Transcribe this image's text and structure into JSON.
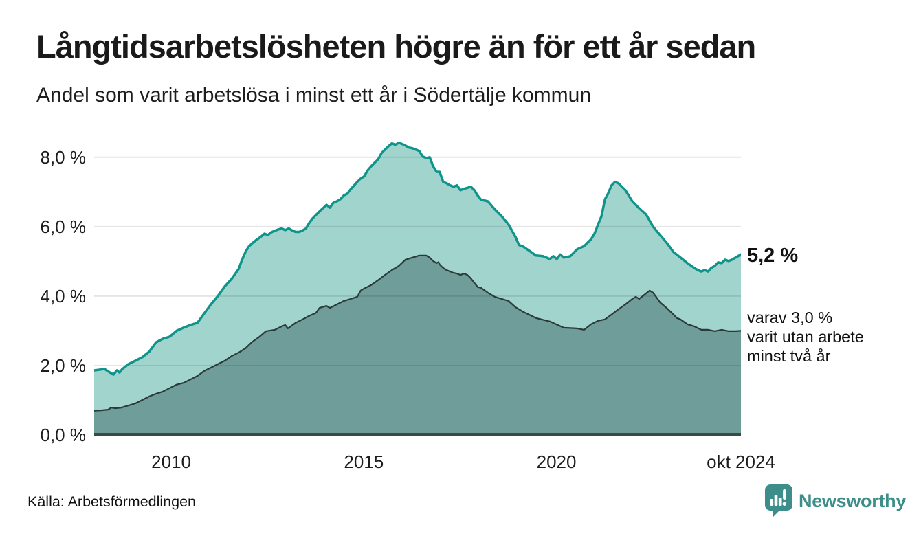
{
  "header": {
    "title": "Långtidsarbetslösheten högre än för ett år sedan",
    "subtitle": "Andel som varit arbetslösa i minst ett år i Södertälje kommun"
  },
  "annotations": {
    "latest_one_year_label": "5,2 %",
    "note_lines": [
      "varav 3,0 %",
      "varit utan arbete",
      "minst två år"
    ]
  },
  "footer": {
    "source": "Källa: Arbetsförmedlingen",
    "brand": "Newsworthy"
  },
  "colors": {
    "accent_teal": "#0f948b",
    "fill_one_year": "#a2d4ce",
    "fill_two_years": "#6f9d99",
    "line_two_years": "#2b3a38",
    "baseline": "#3c4a47",
    "gridline": "rgba(0,0,0,0.10)",
    "brand_teal": "#3d8e8a",
    "text": "#1a1a1a"
  },
  "chart_data": {
    "type": "area",
    "title": "Långtidsarbetslösheten högre än för ett år sedan",
    "subtitle": "Andel som varit arbetslösa i minst ett år i Södertälje kommun",
    "xlabel": "",
    "ylabel": "",
    "unit": "%",
    "grid": true,
    "x_domain": [
      2008.0,
      2024.79
    ],
    "ylim": [
      0,
      8.67
    ],
    "y_ticks": [
      {
        "value": 8,
        "label": "8,0 %"
      },
      {
        "value": 6,
        "label": "6,0 %"
      },
      {
        "value": 4,
        "label": "4,0 %"
      },
      {
        "value": 2,
        "label": "2,0 %"
      },
      {
        "value": 0,
        "label": "0,0 %"
      }
    ],
    "x_ticks": [
      {
        "year": 2010,
        "label": "2010"
      },
      {
        "year": 2015,
        "label": "2015"
      },
      {
        "year": 2020,
        "label": "2020"
      },
      {
        "year": 2024.79,
        "label": "okt 2024"
      }
    ],
    "series": [
      {
        "name": "Andel arbetslösa minst ett år",
        "latest_value": 5.2,
        "latest_label": "5,2 %",
        "fill": "#a2d4ce",
        "stroke": "#0f948b",
        "stroke_width": 3.5,
        "points": [
          [
            2008.0,
            1.86
          ],
          [
            2008.14,
            1.88
          ],
          [
            2008.27,
            1.9
          ],
          [
            2008.41,
            1.8
          ],
          [
            2008.5,
            1.74
          ],
          [
            2008.59,
            1.86
          ],
          [
            2008.66,
            1.8
          ],
          [
            2008.73,
            1.9
          ],
          [
            2008.89,
            2.04
          ],
          [
            2009.07,
            2.14
          ],
          [
            2009.25,
            2.24
          ],
          [
            2009.43,
            2.4
          ],
          [
            2009.61,
            2.67
          ],
          [
            2009.78,
            2.77
          ],
          [
            2009.96,
            2.83
          ],
          [
            2010.14,
            3.0
          ],
          [
            2010.32,
            3.09
          ],
          [
            2010.5,
            3.17
          ],
          [
            2010.68,
            3.23
          ],
          [
            2010.85,
            3.49
          ],
          [
            2011.03,
            3.76
          ],
          [
            2011.21,
            4.0
          ],
          [
            2011.39,
            4.28
          ],
          [
            2011.57,
            4.5
          ],
          [
            2011.75,
            4.78
          ],
          [
            2011.84,
            5.05
          ],
          [
            2011.93,
            5.28
          ],
          [
            2012.01,
            5.42
          ],
          [
            2012.1,
            5.52
          ],
          [
            2012.19,
            5.6
          ],
          [
            2012.34,
            5.72
          ],
          [
            2012.42,
            5.8
          ],
          [
            2012.51,
            5.76
          ],
          [
            2012.6,
            5.84
          ],
          [
            2012.69,
            5.88
          ],
          [
            2012.78,
            5.92
          ],
          [
            2012.87,
            5.95
          ],
          [
            2012.96,
            5.9
          ],
          [
            2013.05,
            5.95
          ],
          [
            2013.14,
            5.89
          ],
          [
            2013.23,
            5.85
          ],
          [
            2013.32,
            5.85
          ],
          [
            2013.41,
            5.89
          ],
          [
            2013.5,
            5.95
          ],
          [
            2013.58,
            6.1
          ],
          [
            2013.67,
            6.24
          ],
          [
            2013.76,
            6.34
          ],
          [
            2013.85,
            6.44
          ],
          [
            2013.94,
            6.53
          ],
          [
            2014.03,
            6.63
          ],
          [
            2014.12,
            6.55
          ],
          [
            2014.21,
            6.69
          ],
          [
            2014.3,
            6.73
          ],
          [
            2014.39,
            6.79
          ],
          [
            2014.48,
            6.9
          ],
          [
            2014.57,
            6.95
          ],
          [
            2014.66,
            7.08
          ],
          [
            2014.83,
            7.29
          ],
          [
            2014.92,
            7.39
          ],
          [
            2015.01,
            7.45
          ],
          [
            2015.1,
            7.62
          ],
          [
            2015.19,
            7.74
          ],
          [
            2015.28,
            7.84
          ],
          [
            2015.37,
            7.94
          ],
          [
            2015.46,
            8.12
          ],
          [
            2015.55,
            8.22
          ],
          [
            2015.64,
            8.32
          ],
          [
            2015.73,
            8.4
          ],
          [
            2015.82,
            8.36
          ],
          [
            2015.91,
            8.42
          ],
          [
            2016.0,
            8.38
          ],
          [
            2016.08,
            8.34
          ],
          [
            2016.17,
            8.28
          ],
          [
            2016.26,
            8.26
          ],
          [
            2016.35,
            8.22
          ],
          [
            2016.44,
            8.18
          ],
          [
            2016.53,
            8.02
          ],
          [
            2016.62,
            7.98
          ],
          [
            2016.71,
            8.0
          ],
          [
            2016.8,
            7.74
          ],
          [
            2016.89,
            7.58
          ],
          [
            2016.97,
            7.58
          ],
          [
            2017.06,
            7.29
          ],
          [
            2017.15,
            7.25
          ],
          [
            2017.24,
            7.19
          ],
          [
            2017.33,
            7.15
          ],
          [
            2017.42,
            7.19
          ],
          [
            2017.51,
            7.05
          ],
          [
            2017.6,
            7.09
          ],
          [
            2017.69,
            7.12
          ],
          [
            2017.78,
            7.15
          ],
          [
            2017.87,
            7.05
          ],
          [
            2017.96,
            6.89
          ],
          [
            2018.04,
            6.78
          ],
          [
            2018.22,
            6.73
          ],
          [
            2018.4,
            6.5
          ],
          [
            2018.58,
            6.3
          ],
          [
            2018.76,
            6.06
          ],
          [
            2018.94,
            5.7
          ],
          [
            2019.03,
            5.47
          ],
          [
            2019.12,
            5.44
          ],
          [
            2019.29,
            5.31
          ],
          [
            2019.47,
            5.17
          ],
          [
            2019.65,
            5.15
          ],
          [
            2019.83,
            5.07
          ],
          [
            2019.92,
            5.15
          ],
          [
            2020.01,
            5.07
          ],
          [
            2020.1,
            5.2
          ],
          [
            2020.19,
            5.11
          ],
          [
            2020.36,
            5.15
          ],
          [
            2020.54,
            5.35
          ],
          [
            2020.72,
            5.44
          ],
          [
            2020.81,
            5.54
          ],
          [
            2020.9,
            5.64
          ],
          [
            2020.99,
            5.8
          ],
          [
            2021.08,
            6.06
          ],
          [
            2021.17,
            6.3
          ],
          [
            2021.26,
            6.79
          ],
          [
            2021.34,
            6.95
          ],
          [
            2021.43,
            7.19
          ],
          [
            2021.52,
            7.29
          ],
          [
            2021.61,
            7.25
          ],
          [
            2021.7,
            7.15
          ],
          [
            2021.79,
            7.05
          ],
          [
            2021.97,
            6.73
          ],
          [
            2022.15,
            6.53
          ],
          [
            2022.33,
            6.35
          ],
          [
            2022.51,
            6.0
          ],
          [
            2022.69,
            5.76
          ],
          [
            2022.86,
            5.54
          ],
          [
            2023.04,
            5.27
          ],
          [
            2023.22,
            5.11
          ],
          [
            2023.4,
            4.95
          ],
          [
            2023.58,
            4.81
          ],
          [
            2023.67,
            4.75
          ],
          [
            2023.76,
            4.71
          ],
          [
            2023.85,
            4.75
          ],
          [
            2023.94,
            4.71
          ],
          [
            2024.02,
            4.81
          ],
          [
            2024.11,
            4.87
          ],
          [
            2024.2,
            4.97
          ],
          [
            2024.29,
            4.95
          ],
          [
            2024.38,
            5.05
          ],
          [
            2024.47,
            5.01
          ],
          [
            2024.56,
            5.05
          ],
          [
            2024.65,
            5.11
          ],
          [
            2024.79,
            5.2
          ]
        ]
      },
      {
        "name": "Andel arbetslösa minst två år",
        "latest_value": 3.0,
        "latest_label": "3,0 %",
        "fill": "#6f9d99",
        "stroke": "#2b3a38",
        "stroke_width": 2.2,
        "points": [
          [
            2008.0,
            0.7
          ],
          [
            2008.18,
            0.71
          ],
          [
            2008.36,
            0.73
          ],
          [
            2008.45,
            0.79
          ],
          [
            2008.54,
            0.77
          ],
          [
            2008.71,
            0.79
          ],
          [
            2008.89,
            0.85
          ],
          [
            2009.07,
            0.91
          ],
          [
            2009.25,
            1.01
          ],
          [
            2009.43,
            1.11
          ],
          [
            2009.61,
            1.19
          ],
          [
            2009.78,
            1.25
          ],
          [
            2009.96,
            1.35
          ],
          [
            2010.14,
            1.45
          ],
          [
            2010.32,
            1.5
          ],
          [
            2010.5,
            1.6
          ],
          [
            2010.68,
            1.7
          ],
          [
            2010.85,
            1.84
          ],
          [
            2011.03,
            1.94
          ],
          [
            2011.21,
            2.04
          ],
          [
            2011.39,
            2.14
          ],
          [
            2011.58,
            2.28
          ],
          [
            2011.76,
            2.38
          ],
          [
            2011.93,
            2.5
          ],
          [
            2012.1,
            2.68
          ],
          [
            2012.28,
            2.82
          ],
          [
            2012.46,
            2.99
          ],
          [
            2012.69,
            3.03
          ],
          [
            2012.87,
            3.13
          ],
          [
            2012.96,
            3.17
          ],
          [
            2013.03,
            3.07
          ],
          [
            2013.23,
            3.23
          ],
          [
            2013.41,
            3.33
          ],
          [
            2013.58,
            3.43
          ],
          [
            2013.76,
            3.52
          ],
          [
            2013.85,
            3.66
          ],
          [
            2014.03,
            3.72
          ],
          [
            2014.12,
            3.66
          ],
          [
            2014.3,
            3.76
          ],
          [
            2014.48,
            3.86
          ],
          [
            2014.66,
            3.92
          ],
          [
            2014.83,
            3.98
          ],
          [
            2014.92,
            4.16
          ],
          [
            2015.01,
            4.22
          ],
          [
            2015.19,
            4.32
          ],
          [
            2015.37,
            4.46
          ],
          [
            2015.55,
            4.61
          ],
          [
            2015.73,
            4.75
          ],
          [
            2015.91,
            4.87
          ],
          [
            2016.08,
            5.05
          ],
          [
            2016.26,
            5.11
          ],
          [
            2016.44,
            5.17
          ],
          [
            2016.62,
            5.17
          ],
          [
            2016.71,
            5.11
          ],
          [
            2016.8,
            5.01
          ],
          [
            2016.89,
            4.95
          ],
          [
            2016.94,
            4.98
          ],
          [
            2016.97,
            4.91
          ],
          [
            2017.06,
            4.81
          ],
          [
            2017.15,
            4.75
          ],
          [
            2017.24,
            4.71
          ],
          [
            2017.33,
            4.67
          ],
          [
            2017.42,
            4.65
          ],
          [
            2017.51,
            4.61
          ],
          [
            2017.6,
            4.65
          ],
          [
            2017.69,
            4.61
          ],
          [
            2017.78,
            4.51
          ],
          [
            2017.87,
            4.38
          ],
          [
            2017.96,
            4.26
          ],
          [
            2018.04,
            4.24
          ],
          [
            2018.22,
            4.1
          ],
          [
            2018.4,
            3.98
          ],
          [
            2018.76,
            3.86
          ],
          [
            2018.94,
            3.68
          ],
          [
            2019.12,
            3.56
          ],
          [
            2019.47,
            3.37
          ],
          [
            2019.83,
            3.27
          ],
          [
            2020.19,
            3.09
          ],
          [
            2020.54,
            3.07
          ],
          [
            2020.72,
            3.03
          ],
          [
            2020.9,
            3.19
          ],
          [
            2021.08,
            3.29
          ],
          [
            2021.26,
            3.33
          ],
          [
            2021.43,
            3.47
          ],
          [
            2021.61,
            3.62
          ],
          [
            2021.79,
            3.76
          ],
          [
            2021.97,
            3.92
          ],
          [
            2022.06,
            3.98
          ],
          [
            2022.15,
            3.92
          ],
          [
            2022.33,
            4.08
          ],
          [
            2022.42,
            4.16
          ],
          [
            2022.51,
            4.1
          ],
          [
            2022.6,
            3.96
          ],
          [
            2022.69,
            3.82
          ],
          [
            2022.86,
            3.66
          ],
          [
            2023.04,
            3.47
          ],
          [
            2023.13,
            3.37
          ],
          [
            2023.22,
            3.33
          ],
          [
            2023.4,
            3.19
          ],
          [
            2023.58,
            3.13
          ],
          [
            2023.76,
            3.03
          ],
          [
            2023.94,
            3.03
          ],
          [
            2024.11,
            2.99
          ],
          [
            2024.29,
            3.03
          ],
          [
            2024.47,
            2.99
          ],
          [
            2024.65,
            2.99
          ],
          [
            2024.79,
            3.0
          ]
        ]
      }
    ]
  }
}
